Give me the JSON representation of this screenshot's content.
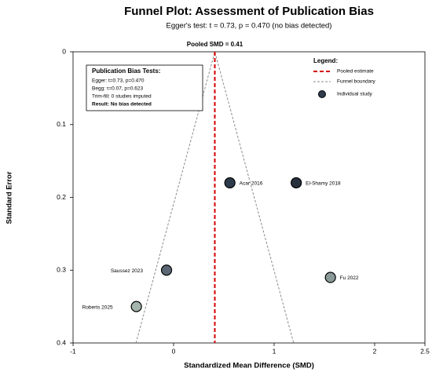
{
  "chart_data": {
    "type": "scatter",
    "title": "Funnel Plot: Assessment of Publication Bias",
    "subtitle": "Egger's test: t = 0.73, p = 0.470 (no bias detected)",
    "x_label": "Standardized Mean Difference (SMD)",
    "y_label": "Standard Error",
    "xlim": [
      -1,
      2.5
    ],
    "ylim": [
      0,
      0.4
    ],
    "y_inverted": true,
    "xticks": [
      -1,
      0,
      1,
      2,
      2.5
    ],
    "yticks": [
      0,
      0.1,
      0.2,
      0.3,
      0.4
    ],
    "series": [
      {
        "name": "Individual study",
        "color": "#2e3b4b",
        "x": [
          0.56,
          1.22,
          -0.07,
          1.56,
          -0.37
        ],
        "y": [
          0.18,
          0.18,
          0.3,
          0.31,
          0.35
        ],
        "labels": [
          "Acar 2016",
          "El-Shamy 2018",
          "Saussez 2023",
          "Fu 2022",
          "Roberts 2025"
        ],
        "colors": [
          "#2e3b4b",
          "#27313d",
          "#5b6775",
          "#8a9a98",
          "#a3b5ad"
        ]
      }
    ],
    "pooled": {
      "name": "Pooled estimate",
      "value": 0.41,
      "color": "#d40000",
      "label": "Pooled SMD = 0.41"
    },
    "funnel": {
      "name": "Funnel boundary",
      "color": "#8c8c8c",
      "x": [
        -0.374,
        0.41,
        1.194
      ],
      "y": [
        0.4,
        0,
        0.4
      ]
    },
    "legend_title": "Legend:",
    "legend": "top-right",
    "bias_box": {
      "title": "Publication Bias Tests:",
      "lines": [
        "Egger: t=0.73, p=0.470",
        "Begg: τ=0.07, p=0.623",
        "Trim-fill: 0 studies imputed"
      ],
      "result": "Result: No bias detected",
      "result_color": "#1a7a1a"
    }
  }
}
